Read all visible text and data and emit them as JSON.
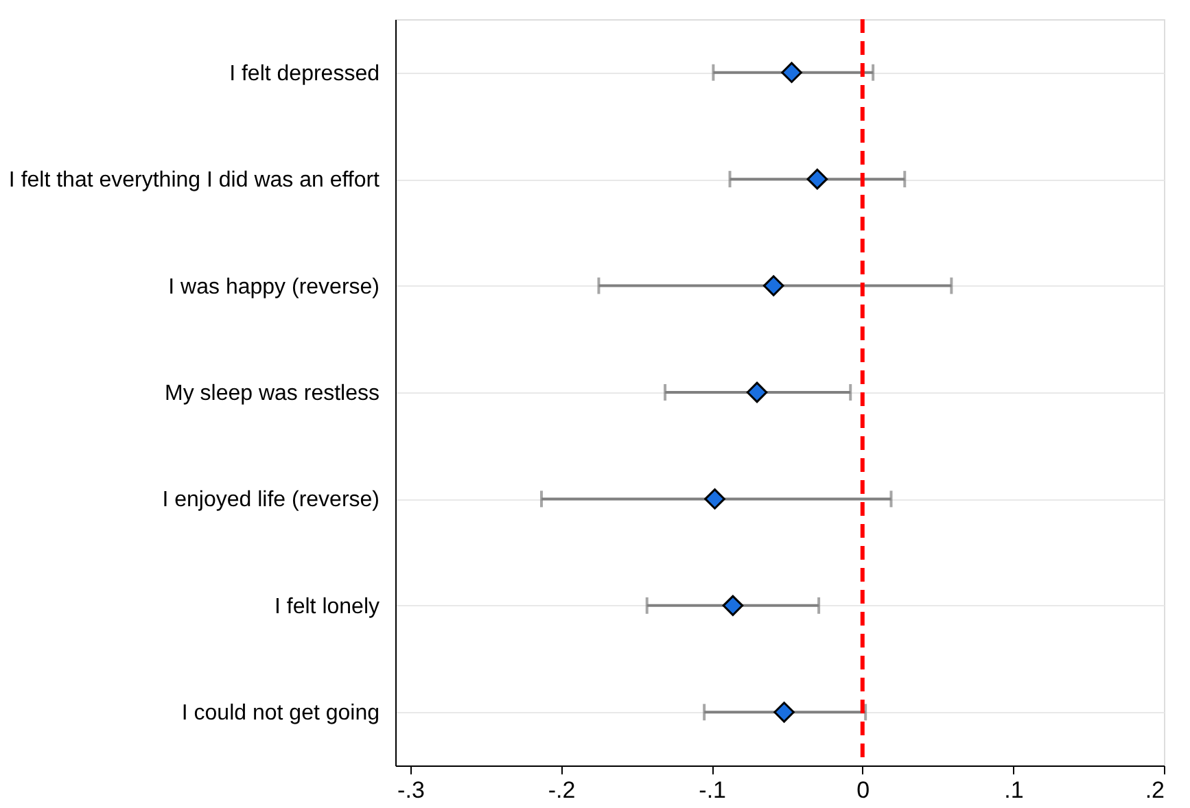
{
  "chart_data": {
    "type": "scatter",
    "orientation": "horizontal",
    "categories": [
      "I felt depressed",
      "I felt that everything I did was an effort",
      "I was happy (reverse)",
      "My sleep was restless",
      "I enjoyed life (reverse)",
      "I felt lonely",
      "I could not get going"
    ],
    "values": [
      -0.047,
      -0.03,
      -0.059,
      -0.07,
      -0.098,
      -0.086,
      -0.052
    ],
    "errors": [
      [
        -0.099,
        0.007
      ],
      [
        -0.088,
        0.028
      ],
      [
        -0.175,
        0.059
      ],
      [
        -0.131,
        -0.008
      ],
      [
        -0.213,
        0.019
      ],
      [
        -0.143,
        -0.029
      ],
      [
        -0.105,
        0.002
      ]
    ],
    "color": "#1a6fe0",
    "marker": "diamond",
    "xlim": [
      -0.31,
      0.2
    ],
    "xticks": [
      {
        "value": -0.3,
        "label": "-.3"
      },
      {
        "value": -0.2,
        "label": "-.2"
      },
      {
        "value": -0.1,
        "label": "-.1"
      },
      0,
      {
        "value": 0.1,
        "label": ".1"
      },
      {
        "value": 0.2,
        "label": ".2"
      }
    ],
    "ref_lines": [
      {
        "axis": "x",
        "value": 0,
        "color": "#ff0000",
        "line_style": "dashed"
      }
    ],
    "grid": "y"
  }
}
